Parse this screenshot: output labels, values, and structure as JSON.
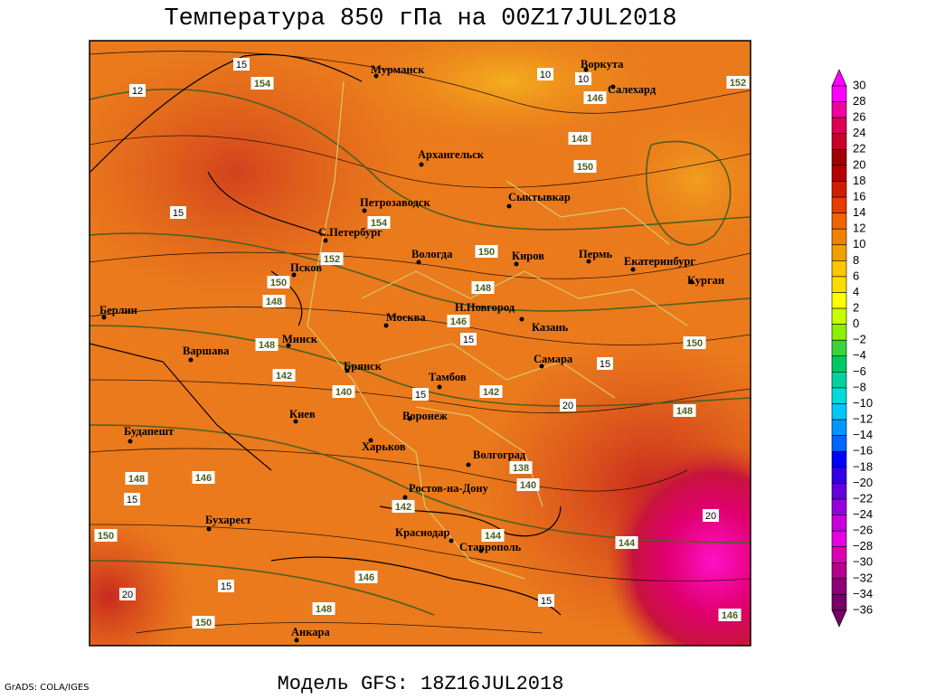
{
  "header": {
    "title": "Температура 850 гПа на 00Z17JUL2018"
  },
  "cities": [
    "Мурманск",
    "Воркута",
    "Салехард",
    "Архангельск",
    "Петрозаводск",
    "Сыктывкар",
    "С.Петербург",
    "Вологда",
    "Киров",
    "Пермь",
    "Екатеринбург",
    "Курган",
    "Псков",
    "Берлин",
    "Н.Новгород",
    "Москва",
    "Казань",
    "Минск",
    "Варшава",
    "Самара",
    "Брянск",
    "Тамбов",
    "Киев",
    "Воронеж",
    "Будапешт",
    "Харьков",
    "Волгоград",
    "Ростов-на-Дону",
    "Бухарест",
    "Краснодар",
    "Ставрополь",
    "Анкара"
  ],
  "contour_labels": [
    "15",
    "12",
    "154",
    "10",
    "10",
    "146",
    "152",
    "148",
    "150",
    "15",
    "154",
    "152",
    "150",
    "150",
    "148",
    "148",
    "146",
    "15",
    "150",
    "148",
    "15",
    "142",
    "140",
    "15",
    "142",
    "20",
    "148",
    "148",
    "146",
    "15",
    "138",
    "140",
    "142",
    "144",
    "144",
    "20",
    "150",
    "146",
    "15",
    "20",
    "148",
    "15",
    "150",
    "146"
  ],
  "colorbar": {
    "labels": [
      "30",
      "28",
      "26",
      "24",
      "22",
      "20",
      "18",
      "16",
      "14",
      "12",
      "10",
      "8",
      "6",
      "4",
      "2",
      "0",
      "−2",
      "−4",
      "−6",
      "−8",
      "−10",
      "−12",
      "−14",
      "−16",
      "−18",
      "−20",
      "−22",
      "−24",
      "−26",
      "−28",
      "−30",
      "−32",
      "−34",
      "−36"
    ]
  },
  "footer": {
    "credit": "GrADS: COLA/IGES",
    "model": "Модель GFS: 18Z16JUL2018"
  }
}
